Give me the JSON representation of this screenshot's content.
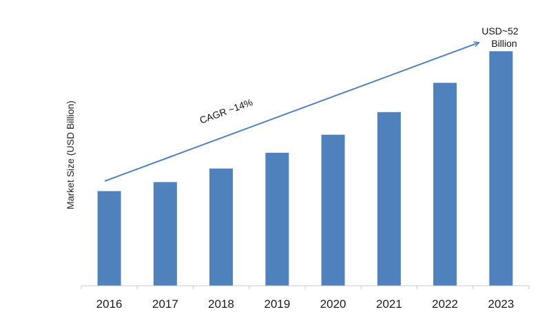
{
  "chart_data": {
    "type": "bar",
    "title": "",
    "xlabel": "",
    "ylabel": "Market Size (USD Billion)",
    "categories": [
      "2016",
      "2017",
      "2018",
      "2019",
      "2020",
      "2021",
      "2022",
      "2023"
    ],
    "values": [
      21.0,
      23.0,
      26.0,
      29.5,
      33.5,
      38.5,
      45.0,
      52.0
    ],
    "ylim": [
      0,
      60
    ],
    "grid": false,
    "legend": "none",
    "bar_color": "#4f81bd",
    "arrow_color": "#4f81bd",
    "annotations": {
      "cagr": "CAGR ~14%",
      "final_value_line1": "USD~52",
      "final_value_line2": "Billion"
    }
  }
}
